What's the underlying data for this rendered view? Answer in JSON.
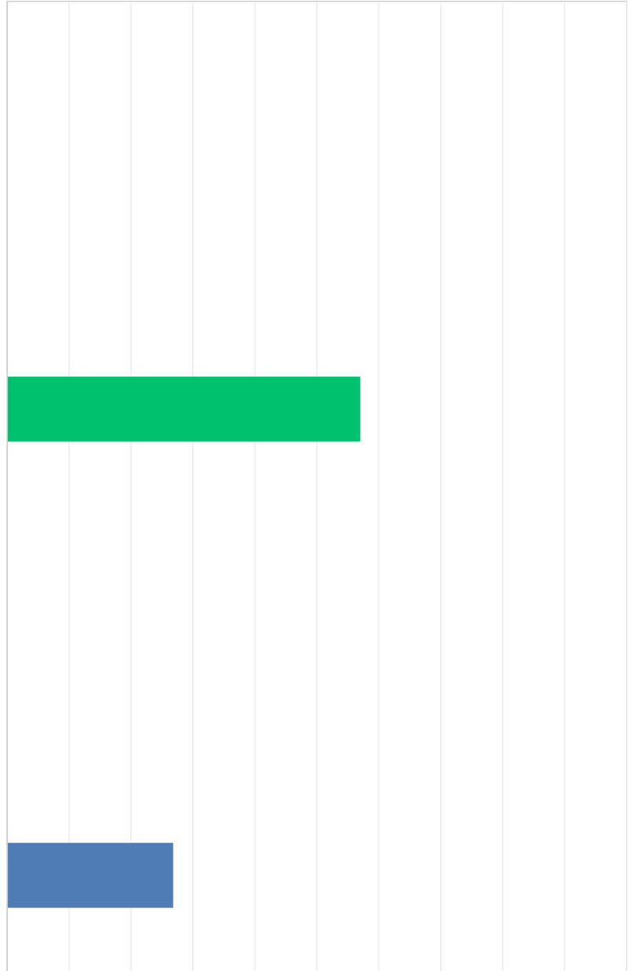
{
  "chart_data": {
    "type": "hbar",
    "categories": [
      null,
      null
    ],
    "values": [
      5.7,
      2.68
    ],
    "colors": [
      "#00bf6f",
      "#4f7cb5"
    ],
    "xlim": [
      0,
      10
    ],
    "xticks": [
      0,
      1,
      2,
      3,
      4,
      5,
      6,
      7,
      8,
      9,
      10
    ],
    "grid": true
  }
}
